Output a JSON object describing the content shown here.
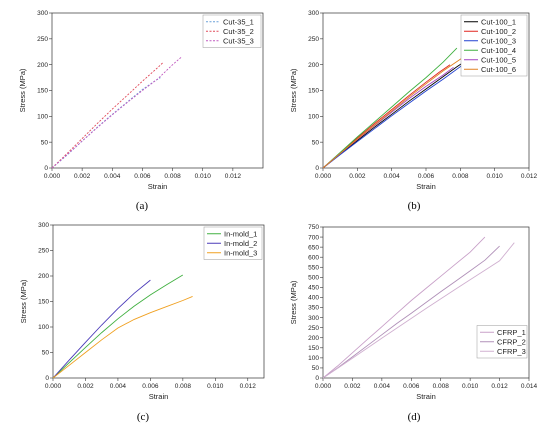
{
  "chart_data": [
    {
      "type": "line",
      "caption": "(a)",
      "xlabel": "Strain",
      "ylabel": "Stress (MPa)",
      "xlim": [
        0,
        0.014
      ],
      "ylim": [
        0,
        300
      ],
      "xticks": [
        "0.000",
        "0.002",
        "0.004",
        "0.006",
        "0.008",
        "0.010",
        "0.012"
      ],
      "yticks": [
        "0",
        "50",
        "100",
        "150",
        "200",
        "250",
        "300"
      ],
      "legend_position": "top-right",
      "series": [
        {
          "name": "Cut-35_1",
          "color": "#6aa0d8",
          "dash": "2,1.5",
          "x": [
            0,
            0.001,
            0.002,
            0.003,
            0.004,
            0.005,
            0.006,
            0.0068,
            0.0072
          ],
          "y": [
            0,
            25,
            52,
            79,
            104,
            128,
            152,
            168,
            175
          ]
        },
        {
          "name": "Cut-35_2",
          "color": "#e04a5a",
          "dash": "2,1.5",
          "x": [
            0,
            0.001,
            0.002,
            0.003,
            0.004,
            0.005,
            0.006,
            0.007,
            0.0074
          ],
          "y": [
            0,
            28,
            57,
            86,
            114,
            141,
            168,
            194,
            205
          ]
        },
        {
          "name": "Cut-35_3",
          "color": "#c05ac0",
          "dash": "2,1.5",
          "x": [
            0,
            0.001,
            0.002,
            0.003,
            0.004,
            0.005,
            0.006,
            0.007,
            0.008,
            0.0086
          ],
          "y": [
            0,
            26,
            52,
            78,
            103,
            127,
            150,
            172,
            200,
            215
          ]
        }
      ]
    },
    {
      "type": "line",
      "caption": "(b)",
      "xlabel": "Strain",
      "ylabel": "Stress (MPa)",
      "xlim": [
        0,
        0.012
      ],
      "ylim": [
        0,
        300
      ],
      "xticks": [
        "0.000",
        "0.002",
        "0.004",
        "0.006",
        "0.008",
        "0.010",
        "0.012"
      ],
      "yticks": [
        "0",
        "50",
        "100",
        "150",
        "200",
        "250",
        "300"
      ],
      "legend_position": "top-right",
      "series": [
        {
          "name": "Cut-100_1",
          "color": "#000000",
          "dash": "",
          "x": [
            0,
            0.001,
            0.002,
            0.003,
            0.004,
            0.005,
            0.006,
            0.007,
            0.0078,
            0.0082
          ],
          "y": [
            0,
            27,
            53,
            79,
            104,
            129,
            153,
            177,
            196,
            205
          ]
        },
        {
          "name": "Cut-100_2",
          "color": "#e0241e",
          "dash": "",
          "x": [
            0,
            0.001,
            0.002,
            0.003,
            0.004,
            0.005,
            0.006,
            0.0068,
            0.0074
          ],
          "y": [
            0,
            29,
            58,
            86,
            113,
            140,
            166,
            186,
            200
          ]
        },
        {
          "name": "Cut-100_3",
          "color": "#2040d0",
          "dash": "",
          "x": [
            0,
            0.001,
            0.002,
            0.003,
            0.004,
            0.005,
            0.006,
            0.007,
            0.008,
            0.0084
          ],
          "y": [
            0,
            26,
            51,
            76,
            101,
            125,
            149,
            172,
            196,
            210
          ]
        },
        {
          "name": "Cut-100_4",
          "color": "#40b040",
          "dash": "",
          "x": [
            0,
            0.001,
            0.002,
            0.003,
            0.004,
            0.005,
            0.006,
            0.007,
            0.0078
          ],
          "y": [
            0,
            30,
            60,
            89,
            118,
            147,
            175,
            205,
            232
          ]
        },
        {
          "name": "Cut-100_5",
          "color": "#a040c0",
          "dash": "",
          "x": [
            0,
            0.001,
            0.002,
            0.003,
            0.004,
            0.005,
            0.006,
            0.007,
            0.0076
          ],
          "y": [
            0,
            28,
            55,
            82,
            108,
            134,
            158,
            180,
            195
          ]
        },
        {
          "name": "Cut-100_6",
          "color": "#e08020",
          "dash": "",
          "x": [
            0,
            0.001,
            0.002,
            0.003,
            0.004,
            0.005,
            0.006,
            0.007,
            0.0082
          ],
          "y": [
            0,
            28,
            56,
            83,
            110,
            137,
            163,
            188,
            215
          ]
        }
      ]
    },
    {
      "type": "line",
      "caption": "(c)",
      "xlabel": "Strain",
      "ylabel": "Stress (MPa)",
      "xlim": [
        0,
        0.013
      ],
      "ylim": [
        0,
        300
      ],
      "xticks": [
        "0.000",
        "0.002",
        "0.004",
        "0.006",
        "0.008",
        "0.010",
        "0.012"
      ],
      "yticks": [
        "0",
        "50",
        "100",
        "150",
        "200",
        "250",
        "300"
      ],
      "legend_position": "top-right",
      "series": [
        {
          "name": "In-mold_1",
          "color": "#40b040",
          "dash": "",
          "x": [
            0,
            0.001,
            0.002,
            0.003,
            0.004,
            0.005,
            0.006,
            0.007,
            0.008
          ],
          "y": [
            0,
            30,
            60,
            89,
            116,
            141,
            163,
            183,
            202
          ]
        },
        {
          "name": "In-mold_2",
          "color": "#4a3ab8",
          "dash": "",
          "x": [
            0,
            0.001,
            0.002,
            0.003,
            0.004,
            0.005,
            0.006
          ],
          "y": [
            0,
            35,
            70,
            104,
            136,
            166,
            192
          ]
        },
        {
          "name": "In-mold_3",
          "color": "#f0a020",
          "dash": "",
          "x": [
            0,
            0.001,
            0.002,
            0.003,
            0.004,
            0.005,
            0.006,
            0.007,
            0.008,
            0.0086
          ],
          "y": [
            0,
            25,
            50,
            75,
            98,
            115,
            128,
            140,
            152,
            160
          ]
        }
      ]
    },
    {
      "type": "line",
      "caption": "(d)",
      "xlabel": "Strain",
      "ylabel": "Stress (MPa)",
      "xlim": [
        0,
        0.014
      ],
      "ylim": [
        0,
        750
      ],
      "xticks": [
        "0.000",
        "0.002",
        "0.004",
        "0.006",
        "0.008",
        "0.010",
        "0.012",
        "0.014"
      ],
      "yticks": [
        "0",
        "50",
        "100",
        "150",
        "200",
        "250",
        "300",
        "350",
        "400",
        "450",
        "500",
        "550",
        "600",
        "650",
        "700",
        "750"
      ],
      "legend_position": "bottom-right",
      "series": [
        {
          "name": "CFRP_1",
          "color": "#c8a0c8",
          "dash": "",
          "x": [
            0,
            0.001,
            0.002,
            0.003,
            0.004,
            0.005,
            0.006,
            0.007,
            0.008,
            0.009,
            0.01,
            0.011
          ],
          "y": [
            0,
            60,
            125,
            190,
            255,
            320,
            385,
            445,
            505,
            565,
            625,
            700
          ]
        },
        {
          "name": "CFRP_2",
          "color": "#b090b8",
          "dash": "",
          "x": [
            0,
            0.001,
            0.002,
            0.003,
            0.004,
            0.005,
            0.006,
            0.007,
            0.008,
            0.009,
            0.01,
            0.011,
            0.012
          ],
          "y": [
            0,
            50,
            105,
            160,
            215,
            270,
            322,
            375,
            428,
            480,
            532,
            585,
            655
          ]
        },
        {
          "name": "CFRP_3",
          "color": "#d0b0d0",
          "dash": "",
          "x": [
            0,
            0.001,
            0.002,
            0.003,
            0.004,
            0.005,
            0.006,
            0.007,
            0.008,
            0.009,
            0.01,
            0.011,
            0.012,
            0.013
          ],
          "y": [
            0,
            48,
            98,
            148,
            198,
            247,
            296,
            345,
            393,
            441,
            488,
            535,
            582,
            672
          ]
        }
      ]
    }
  ]
}
